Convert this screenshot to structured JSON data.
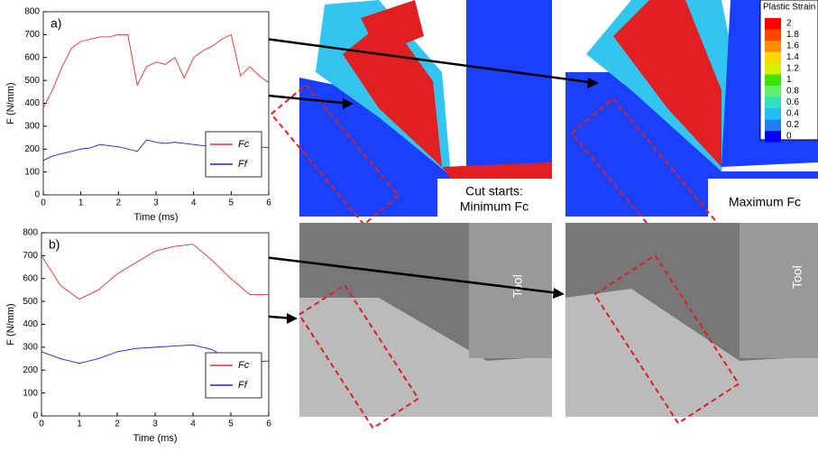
{
  "chart_data": [
    {
      "type": "line",
      "panel_label": "a)",
      "ylabel": "F (N/mm)",
      "xlabel": "Time (ms)",
      "x": [
        0,
        0.25,
        0.5,
        0.75,
        1,
        1.25,
        1.5,
        1.75,
        2,
        2.25,
        2.5,
        2.75,
        3,
        3.25,
        3.5,
        3.75,
        4,
        4.25,
        4.5,
        4.75,
        5,
        5.25,
        5.5,
        5.75,
        6
      ],
      "xlim": [
        0,
        6
      ],
      "xticks": [
        0,
        1,
        2,
        3,
        4,
        5,
        6
      ],
      "ylim": [
        0,
        800
      ],
      "yticks": [
        0,
        100,
        200,
        300,
        400,
        500,
        600,
        700,
        800
      ],
      "series": [
        {
          "name": "Fc",
          "color": "#e03030",
          "values": [
            380,
            460,
            560,
            640,
            670,
            680,
            690,
            690,
            700,
            700,
            480,
            560,
            580,
            570,
            600,
            510,
            600,
            630,
            650,
            680,
            700,
            520,
            560,
            520,
            490
          ]
        },
        {
          "name": "Ff",
          "color": "#2020d0",
          "values": [
            150,
            170,
            180,
            190,
            200,
            205,
            220,
            215,
            210,
            200,
            190,
            240,
            230,
            225,
            230,
            225,
            220,
            215,
            210,
            205,
            200,
            195,
            205,
            210,
            205
          ]
        }
      ]
    },
    {
      "type": "line",
      "panel_label": "b)",
      "ylabel": "F (N/mm)",
      "xlabel": "Time (ms)",
      "x": [
        0,
        0.5,
        1,
        1.5,
        2,
        2.5,
        3,
        3.5,
        4,
        4.5,
        5,
        5.5,
        6
      ],
      "xlim": [
        0,
        6
      ],
      "xticks": [
        0,
        1,
        2,
        3,
        4,
        5,
        6
      ],
      "ylim": [
        0,
        800
      ],
      "yticks": [
        0,
        100,
        200,
        300,
        400,
        500,
        600,
        700,
        800
      ],
      "series": [
        {
          "name": "Fc",
          "color": "#e03030",
          "values": [
            700,
            570,
            510,
            550,
            620,
            670,
            720,
            740,
            750,
            680,
            600,
            530,
            530
          ]
        },
        {
          "name": "Ff",
          "color": "#2020d0",
          "values": [
            280,
            250,
            230,
            250,
            280,
            295,
            300,
            305,
            310,
            290,
            240,
            235,
            240
          ]
        }
      ]
    }
  ],
  "figure": {
    "colorbar": {
      "title": "Plastic Strain",
      "labels": [
        "2",
        "1.8",
        "1.6",
        "1.4",
        "1.2",
        "1",
        "0.8",
        "0.6",
        "0.4",
        "0.2",
        "0"
      ],
      "colors": [
        "#ff0000",
        "#ff4500",
        "#ff8c00",
        "#ffd700",
        "#d4f000",
        "#40e000",
        "#60f070",
        "#30e0c0",
        "#20c0f0",
        "#2080f0",
        "#0000ff"
      ]
    },
    "cut_starts": "Cut starts:",
    "minimum": "Minimum Fc",
    "maximum": "Maximum Fc",
    "tool_left": "Tool",
    "tool_right": "Tool"
  }
}
